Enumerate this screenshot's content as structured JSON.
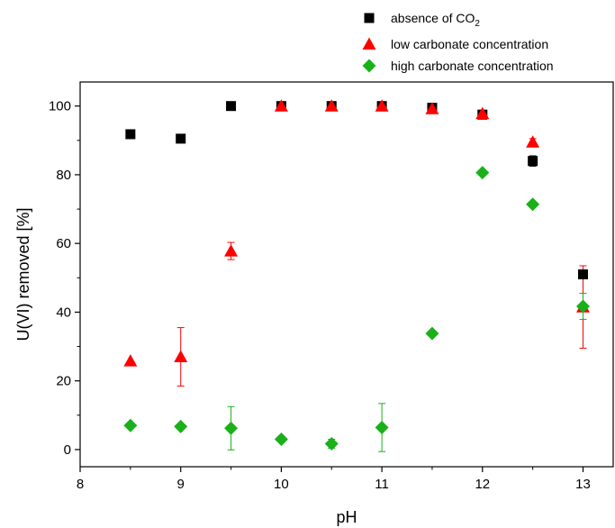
{
  "chart_data": {
    "type": "scatter",
    "xlabel": "pH",
    "ylabel": "U(VI) removed [%]",
    "xlim": [
      8,
      13.3
    ],
    "ylim": [
      -5,
      107
    ],
    "xticks": [
      "8",
      "9",
      "10",
      "11",
      "12",
      "13"
    ],
    "yticks": [
      "0",
      "20",
      "40",
      "60",
      "80",
      "100"
    ],
    "legend_position": "top-right",
    "series": [
      {
        "name": "absence of CO",
        "name_subscript": "2",
        "marker": "square",
        "color": "#000000",
        "points": [
          {
            "x": 8.5,
            "y": 91.8
          },
          {
            "x": 9.0,
            "y": 90.5
          },
          {
            "x": 9.5,
            "y": 100.0
          },
          {
            "x": 10.0,
            "y": 100.0
          },
          {
            "x": 10.5,
            "y": 100.0
          },
          {
            "x": 11.0,
            "y": 100.0
          },
          {
            "x": 11.5,
            "y": 99.5
          },
          {
            "x": 12.0,
            "y": 97.5
          },
          {
            "x": 12.5,
            "y": 84.0,
            "err": 1.5
          },
          {
            "x": 13.0,
            "y": 51.0
          }
        ]
      },
      {
        "name": "low carbonate concentration",
        "marker": "triangle",
        "color": "#ff0000",
        "points": [
          {
            "x": 8.5,
            "y": 25.8
          },
          {
            "x": 9.0,
            "y": 27.0,
            "err": 8.5
          },
          {
            "x": 9.5,
            "y": 57.8,
            "err": 2.5
          },
          {
            "x": 10.0,
            "y": 100.0,
            "err": 1.0
          },
          {
            "x": 10.5,
            "y": 100.0,
            "err": 1.0
          },
          {
            "x": 11.0,
            "y": 100.0,
            "err": 1.0
          },
          {
            "x": 11.5,
            "y": 99.2,
            "err": 1.0
          },
          {
            "x": 12.0,
            "y": 97.8,
            "err": 1.0
          },
          {
            "x": 12.5,
            "y": 89.5,
            "err": 1.0
          },
          {
            "x": 13.0,
            "y": 41.5,
            "err": 12.0
          }
        ]
      },
      {
        "name": "high carbonate concentration",
        "marker": "diamond",
        "color": "#1ab01a",
        "points": [
          {
            "x": 8.5,
            "y": 7.0
          },
          {
            "x": 9.0,
            "y": 6.7
          },
          {
            "x": 9.5,
            "y": 6.2,
            "err": 6.3
          },
          {
            "x": 10.0,
            "y": 3.0
          },
          {
            "x": 10.5,
            "y": 1.7,
            "err": 1.3
          },
          {
            "x": 11.0,
            "y": 6.4,
            "err": 7.0
          },
          {
            "x": 11.5,
            "y": 33.8
          },
          {
            "x": 12.0,
            "y": 80.6
          },
          {
            "x": 12.5,
            "y": 71.4
          },
          {
            "x": 13.0,
            "y": 41.7,
            "err": 3.8
          }
        ]
      }
    ]
  }
}
